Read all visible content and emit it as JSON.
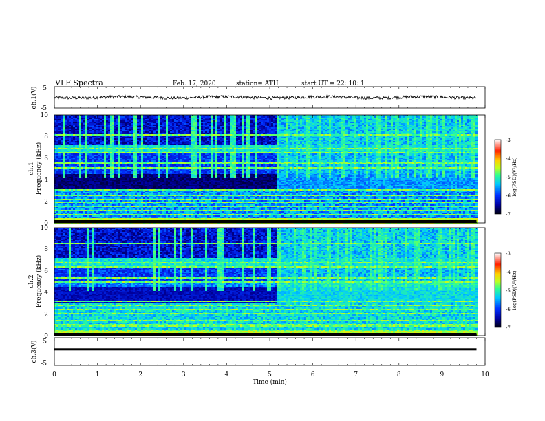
{
  "header": {
    "title": "VLF Spectra",
    "date": "Feb. 17, 2020",
    "station": "station= ATH",
    "start": "start UT = 22: 10: 1"
  },
  "chart_data": [
    {
      "type": "line",
      "name": "ch1-waveform",
      "ylabel": "ch.1(V)",
      "ylim": [
        -5,
        5
      ],
      "yticks": [
        "5",
        "-5"
      ],
      "xlim": [
        0,
        10
      ],
      "x_end": 9.8,
      "approx_level": 0,
      "noise_amplitude": 1.4
    },
    {
      "type": "heatmap",
      "name": "ch1-spectrogram",
      "ylabel_lines": [
        "ch.1",
        "Frequency (kHz)"
      ],
      "ylim": [
        0,
        10
      ],
      "yticks": [
        "0",
        "2",
        "4",
        "6",
        "8",
        "10"
      ],
      "xlim": [
        0,
        10
      ],
      "x_end": 9.8,
      "break_time": 5.15,
      "colorbar": {
        "label": "log(PSD)(V²/Hz)",
        "ticks": [
          "-3",
          "-4",
          "-5",
          "-6",
          "-7"
        ],
        "range": [
          -7,
          -3
        ]
      }
    },
    {
      "type": "heatmap",
      "name": "ch2-spectrogram",
      "ylabel_lines": [
        "ch.2",
        "Frequency (kHz)"
      ],
      "ylim": [
        0,
        10
      ],
      "yticks": [
        "0",
        "2",
        "4",
        "6",
        "8",
        "10"
      ],
      "xlim": [
        0,
        10
      ],
      "x_end": 9.8,
      "break_time": 5.15,
      "colorbar": {
        "label": "log(PSD)(V²/Hz)",
        "ticks": [
          "-3",
          "-4",
          "-5",
          "-6",
          "-7"
        ],
        "range": [
          -7,
          -3
        ]
      }
    },
    {
      "type": "line",
      "name": "ch3-waveform",
      "ylabel": "ch.3(V)",
      "ylim": [
        -5,
        5
      ],
      "yticks": [
        "5",
        "-5"
      ],
      "xlim": [
        0,
        10
      ],
      "x_end": 9.8,
      "approx_level": 0.8
    }
  ],
  "x_axis": {
    "label": "Time (min)",
    "ticks": [
      "0",
      "1",
      "2",
      "3",
      "4",
      "5",
      "6",
      "7",
      "8",
      "9",
      "10"
    ]
  },
  "colors": {
    "colormap": [
      "#000010",
      "#0000a0",
      "#0030ff",
      "#00c8ff",
      "#30ff90",
      "#c0ff20",
      "#ffd000",
      "#ff2000",
      "#ffffff"
    ]
  }
}
